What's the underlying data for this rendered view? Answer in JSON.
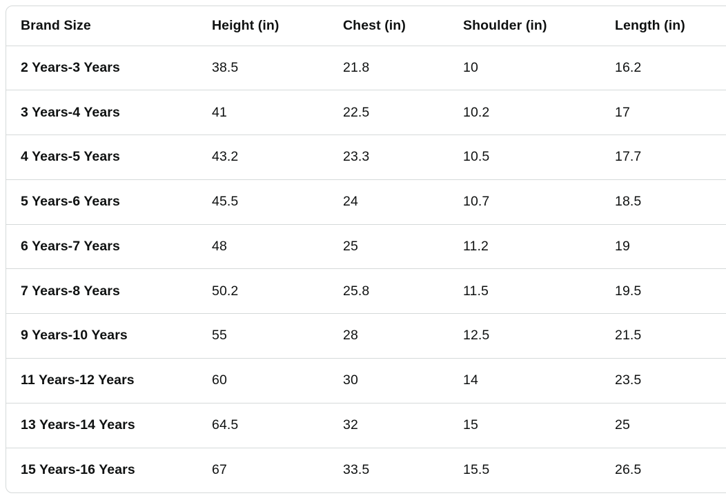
{
  "size_chart": {
    "columns": [
      "Brand Size",
      "Height (in)",
      "Chest (in)",
      "Shoulder (in)",
      "Length (in)"
    ],
    "rows": [
      {
        "cells": [
          "2 Years-3 Years",
          "38.5",
          "21.8",
          "10",
          "16.2"
        ]
      },
      {
        "cells": [
          "3 Years-4 Years",
          "41",
          "22.5",
          "10.2",
          "17"
        ]
      },
      {
        "cells": [
          "4 Years-5 Years",
          "43.2",
          "23.3",
          "10.5",
          "17.7"
        ]
      },
      {
        "cells": [
          "5 Years-6 Years",
          "45.5",
          "24",
          "10.7",
          "18.5"
        ]
      },
      {
        "cells": [
          "6 Years-7 Years",
          "48",
          "25",
          "11.2",
          "19"
        ]
      },
      {
        "cells": [
          "7 Years-8 Years",
          "50.2",
          "25.8",
          "11.5",
          "19.5"
        ]
      },
      {
        "cells": [
          "9 Years-10 Years",
          "55",
          "28",
          "12.5",
          "21.5"
        ]
      },
      {
        "cells": [
          "11 Years-12 Years",
          "60",
          "30",
          "14",
          "23.5"
        ]
      },
      {
        "cells": [
          "13 Years-14 Years",
          "64.5",
          "32",
          "15",
          "25"
        ]
      },
      {
        "cells": [
          "15 Years-16 Years",
          "67",
          "33.5",
          "15.5",
          "26.5"
        ]
      }
    ],
    "colors": {
      "text": "#0f1111",
      "border": "#d5d9d9",
      "background": "#ffffff"
    }
  }
}
